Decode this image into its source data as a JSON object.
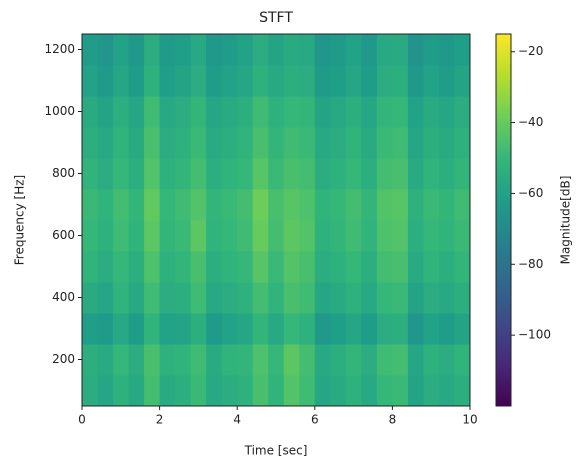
{
  "chart_data": {
    "type": "heatmap",
    "title": "STFT",
    "xlabel": "Time [sec]",
    "ylabel": "Frequency [Hz]",
    "colorbar_label": "Magnitude[dB]",
    "colormap": "viridis",
    "x": [
      0.2,
      0.6,
      1.0,
      1.4,
      1.8,
      2.2,
      2.6,
      3.0,
      3.4,
      3.8,
      4.2,
      4.6,
      5.0,
      5.4,
      5.8,
      6.2,
      6.6,
      7.0,
      7.4,
      7.8,
      8.2,
      8.6,
      9.0,
      9.4,
      9.8
    ],
    "y": [
      100,
      200,
      300,
      400,
      500,
      600,
      700,
      800,
      900,
      1000,
      1100,
      1200
    ],
    "values": [
      [
        -55,
        -58,
        -53,
        -57,
        -47,
        -56,
        -54,
        -49,
        -57,
        -55,
        -53,
        -46,
        -52,
        -44,
        -48,
        -58,
        -56,
        -53,
        -57,
        -50,
        -49,
        -59,
        -55,
        -57,
        -54
      ],
      [
        -54,
        -56,
        -50,
        -55,
        -46,
        -53,
        -52,
        -48,
        -56,
        -52,
        -51,
        -45,
        -50,
        -42,
        -47,
        -57,
        -54,
        -51,
        -55,
        -48,
        -47,
        -58,
        -53,
        -55,
        -52
      ],
      [
        -61,
        -63,
        -57,
        -62,
        -52,
        -60,
        -59,
        -54,
        -63,
        -60,
        -58,
        -51,
        -57,
        -50,
        -53,
        -64,
        -61,
        -58,
        -62,
        -55,
        -54,
        -65,
        -60,
        -62,
        -59
      ],
      [
        -56,
        -58,
        -52,
        -57,
        -48,
        -55,
        -54,
        -48,
        -57,
        -55,
        -53,
        -47,
        -52,
        -46,
        -48,
        -58,
        -56,
        -53,
        -57,
        -50,
        -49,
        -59,
        -55,
        -57,
        -54
      ],
      [
        -52,
        -55,
        -50,
        -54,
        -45,
        -53,
        -51,
        -46,
        -54,
        -52,
        -50,
        -43,
        -49,
        -44,
        -46,
        -55,
        -53,
        -50,
        -54,
        -47,
        -46,
        -56,
        -52,
        -54,
        -51
      ],
      [
        -50,
        -53,
        -48,
        -52,
        -42,
        -51,
        -49,
        -42,
        -52,
        -50,
        -48,
        -40,
        -47,
        -42,
        -44,
        -53,
        -51,
        -48,
        -52,
        -45,
        -44,
        -54,
        -50,
        -52,
        -49
      ],
      [
        -49,
        -52,
        -47,
        -51,
        -41,
        -50,
        -48,
        -44,
        -51,
        -49,
        -47,
        -39,
        -46,
        -43,
        -45,
        -52,
        -50,
        -47,
        -51,
        -44,
        -43,
        -53,
        -49,
        -51,
        -48
      ],
      [
        -52,
        -55,
        -50,
        -54,
        -44,
        -53,
        -51,
        -47,
        -54,
        -52,
        -50,
        -43,
        -49,
        -46,
        -47,
        -55,
        -53,
        -50,
        -54,
        -47,
        -46,
        -56,
        -52,
        -54,
        -51
      ],
      [
        -54,
        -57,
        -52,
        -56,
        -46,
        -55,
        -53,
        -49,
        -56,
        -54,
        -52,
        -46,
        -51,
        -48,
        -49,
        -57,
        -55,
        -52,
        -56,
        -49,
        -48,
        -58,
        -54,
        -56,
        -53
      ],
      [
        -56,
        -59,
        -54,
        -58,
        -48,
        -57,
        -55,
        -51,
        -58,
        -56,
        -54,
        -48,
        -53,
        -50,
        -51,
        -59,
        -57,
        -54,
        -58,
        -51,
        -50,
        -60,
        -56,
        -58,
        -55
      ],
      [
        -60,
        -63,
        -58,
        -62,
        -53,
        -61,
        -59,
        -55,
        -62,
        -60,
        -58,
        -53,
        -57,
        -54,
        -55,
        -63,
        -61,
        -58,
        -62,
        -55,
        -54,
        -64,
        -60,
        -62,
        -59
      ],
      [
        -62,
        -65,
        -60,
        -64,
        -55,
        -63,
        -61,
        -57,
        -64,
        -62,
        -60,
        -55,
        -59,
        -56,
        -57,
        -65,
        -63,
        -60,
        -64,
        -57,
        -56,
        -66,
        -62,
        -64,
        -61
      ]
    ],
    "xlim": [
      0,
      10
    ],
    "xticks": [
      0,
      2,
      4,
      6,
      8,
      10
    ],
    "ylim": [
      50,
      1250
    ],
    "yticks": [
      200,
      400,
      600,
      800,
      1000,
      1200
    ],
    "clim": [
      -120,
      -15
    ],
    "cticks": [
      {
        "value": -20,
        "label": "−20"
      },
      {
        "value": -40,
        "label": "−40"
      },
      {
        "value": -60,
        "label": "−60"
      },
      {
        "value": -80,
        "label": "−80"
      },
      {
        "value": -100,
        "label": "−100"
      }
    ]
  }
}
